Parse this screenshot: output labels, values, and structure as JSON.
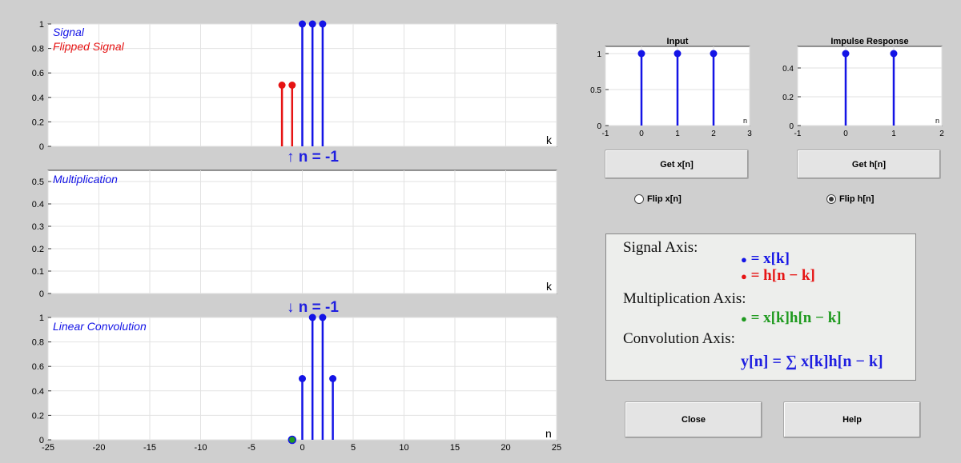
{
  "colors": {
    "blue": "#1414e6",
    "red": "#e61414",
    "green": "#1f9a1f",
    "axes_bg": "#ffffff",
    "fig_bg": "#cfcfcf"
  },
  "signal_axis": {
    "legend": [
      "Signal",
      "Flipped Signal"
    ],
    "xlabel": "k",
    "ylim": [
      0,
      1
    ],
    "yticks": [
      "0",
      "0.2",
      "0.4",
      "0.6",
      "0.8",
      "1"
    ]
  },
  "indicator_1": "↑ n = -1",
  "mult_axis": {
    "legend": [
      "Multiplication"
    ],
    "xlabel": "k",
    "ylim": [
      0,
      0.55
    ],
    "yticks": [
      "0",
      "0.1",
      "0.2",
      "0.3",
      "0.4",
      "0.5"
    ]
  },
  "indicator_2": "↓ n = -1",
  "conv_axis": {
    "legend": [
      "Linear Convolution"
    ],
    "xlabel": "n",
    "ylim": [
      0,
      1
    ],
    "yticks": [
      "0",
      "0.2",
      "0.4",
      "0.6",
      "0.8",
      "1"
    ],
    "xticks": [
      "-25",
      "-20",
      "-15",
      "-10",
      "-5",
      "0",
      "5",
      "10",
      "15",
      "20",
      "25"
    ]
  },
  "input_axis": {
    "title": "Input",
    "xlabel": "n",
    "xticks": [
      "-1",
      "0",
      "1",
      "2",
      "3"
    ],
    "yticks": [
      "0",
      "0.5",
      "1"
    ]
  },
  "impulse_axis": {
    "title": "Impulse Response",
    "xlabel": "n",
    "xticks": [
      "-1",
      "0",
      "1",
      "2"
    ],
    "yticks": [
      "0",
      "0.2",
      "0.4"
    ]
  },
  "buttons": {
    "get_x": "Get x[n]",
    "get_h": "Get h[n]",
    "close": "Close",
    "help": "Help"
  },
  "radios": {
    "flip_x": "Flip x[n]",
    "flip_h": "Flip h[n]",
    "flip_x_checked": false,
    "flip_h_checked": true
  },
  "legend_panel": {
    "signal_header": "Signal Axis:",
    "signal_eq1": "= x[k]",
    "signal_eq2": "= h[n − k]",
    "mult_header": "Multiplication Axis:",
    "mult_eq": "= x[k]h[n − k]",
    "conv_header": "Convolution Axis:",
    "conv_eq": "y[n] = ∑ x[k]h[n − k]",
    "bullet": "●"
  },
  "chart_data": [
    {
      "type": "scatter",
      "name": "signal-axis",
      "xlim": [
        -25,
        25
      ],
      "ylim": [
        0,
        1
      ],
      "grid": true,
      "series": [
        {
          "name": "Signal",
          "color": "blue",
          "x": [
            0,
            1,
            2
          ],
          "y": [
            1,
            1,
            1
          ]
        },
        {
          "name": "Flipped Signal",
          "color": "red",
          "x": [
            -2,
            -1
          ],
          "y": [
            0.5,
            0.5
          ]
        }
      ]
    },
    {
      "type": "scatter",
      "name": "multiplication-axis",
      "xlim": [
        -25,
        25
      ],
      "ylim": [
        0,
        0.55
      ],
      "grid": true,
      "series": [
        {
          "name": "Multiplication",
          "color": "blue",
          "x": [],
          "y": []
        }
      ]
    },
    {
      "type": "scatter",
      "name": "convolution-axis",
      "xlim": [
        -25,
        25
      ],
      "ylim": [
        0,
        1
      ],
      "grid": true,
      "series": [
        {
          "name": "Linear Convolution",
          "color": "blue",
          "x": [
            0,
            1,
            2,
            3
          ],
          "y": [
            0.5,
            1,
            1,
            0.5
          ]
        },
        {
          "name": "current",
          "color": "green",
          "x": [
            -1
          ],
          "y": [
            0
          ]
        }
      ]
    },
    {
      "type": "scatter",
      "name": "input-axis",
      "xlim": [
        -1,
        3
      ],
      "ylim": [
        0,
        1.1
      ],
      "grid": true,
      "series": [
        {
          "name": "Input",
          "color": "blue",
          "x": [
            0,
            1,
            2
          ],
          "y": [
            1,
            1,
            1
          ]
        }
      ]
    },
    {
      "type": "scatter",
      "name": "impulse-axis",
      "xlim": [
        -1,
        2
      ],
      "ylim": [
        0,
        0.55
      ],
      "grid": true,
      "series": [
        {
          "name": "Impulse Response",
          "color": "blue",
          "x": [
            0,
            1
          ],
          "y": [
            0.5,
            0.5
          ]
        }
      ]
    }
  ]
}
